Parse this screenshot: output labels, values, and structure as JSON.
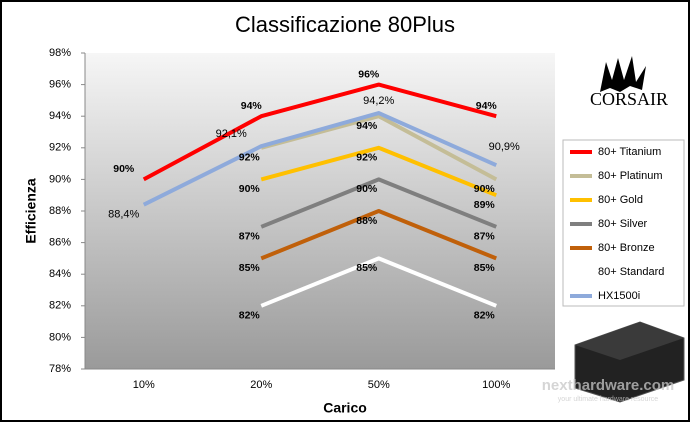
{
  "chart_data": {
    "type": "line",
    "title": "Classificazione 80Plus",
    "x_label": "Carico",
    "y_label": "Efficienza",
    "categories": [
      "10%",
      "20%",
      "50%",
      "100%"
    ],
    "ylim": [
      78,
      98
    ],
    "yticks": [
      {
        "value": 78,
        "label": "78%"
      },
      {
        "value": 80,
        "label": "80%"
      },
      {
        "value": 82,
        "label": "82%"
      },
      {
        "value": 84,
        "label": "84%"
      },
      {
        "value": 86,
        "label": "86%"
      },
      {
        "value": 88,
        "label": "88%"
      },
      {
        "value": 90,
        "label": "90%"
      },
      {
        "value": 92,
        "label": "92%"
      },
      {
        "value": 94,
        "label": "94%"
      },
      {
        "value": 96,
        "label": "96%"
      },
      {
        "value": 98,
        "label": "98%"
      }
    ],
    "grid": false,
    "legend": "right",
    "series": [
      {
        "name": "80+ Titanium",
        "color": "#ff0000",
        "values": [
          90,
          94,
          96,
          94
        ],
        "value_labels": [
          "90%",
          "94%",
          "96%",
          "94%"
        ]
      },
      {
        "name": "80+ Platinum",
        "color": "#c4bd97",
        "values": [
          null,
          92,
          94,
          90
        ],
        "value_labels": [
          null,
          "92%",
          "94%",
          "90%"
        ]
      },
      {
        "name": "80+ Gold",
        "color": "#ffc000",
        "values": [
          null,
          90,
          92,
          89
        ],
        "value_labels": [
          null,
          "90%",
          "92%",
          "89%"
        ]
      },
      {
        "name": "80+ Silver",
        "color": "#7f7f7f",
        "values": [
          null,
          87,
          90,
          87
        ],
        "value_labels": [
          null,
          "87%",
          "90%",
          "87%"
        ]
      },
      {
        "name": "80+ Bronze",
        "color": "#c0600a",
        "values": [
          null,
          85,
          88,
          85
        ],
        "value_labels": [
          null,
          "85%",
          "88%",
          "85%"
        ]
      },
      {
        "name": "80+ Standard",
        "color": "#ffffff",
        "values": [
          null,
          82,
          85,
          82
        ],
        "value_labels": [
          null,
          "82%",
          "85%",
          "82%"
        ]
      },
      {
        "name": "HX1500i",
        "color": "#8eaadb",
        "values": [
          88.4,
          92.1,
          94.2,
          90.9
        ],
        "value_labels": [
          "88,4%",
          "92,1%",
          "94,2%",
          "90,9%"
        ]
      }
    ],
    "logo": "CORSAIR",
    "watermark": "nexthardware.com",
    "watermark_sub": "your ultimate hardware resource"
  }
}
